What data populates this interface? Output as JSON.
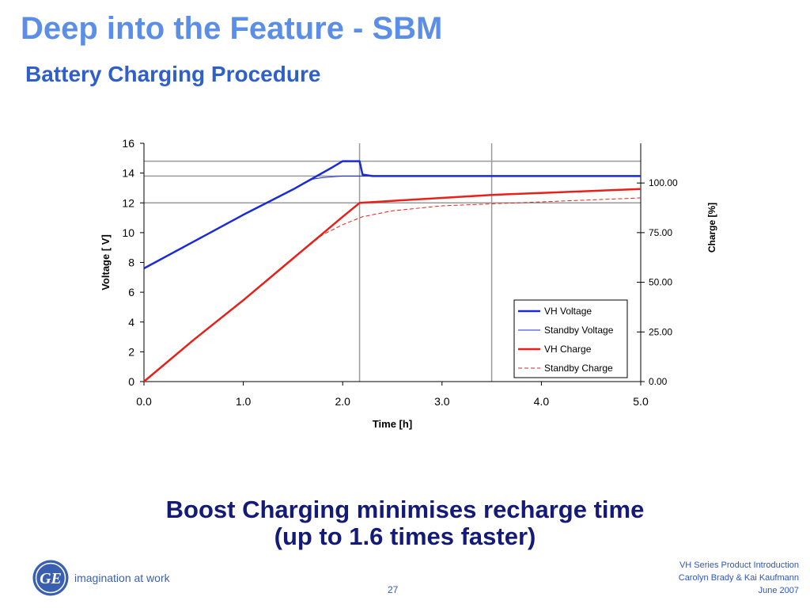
{
  "slide": {
    "title": "Deep into the Feature - SBM",
    "subtitle": "Battery Charging Procedure",
    "caption_line1": "Boost Charging minimises recharge time",
    "caption_line2": "(up to 1.6 times faster)",
    "logo_text": "GE",
    "tagline": "imagination at work",
    "page_number": "27",
    "footer": {
      "line1": "VH Series Product Introduction",
      "line2": "Carolyn Brady & Kai Kaufmann",
      "line3": "June 2007"
    },
    "colors": {
      "title": "#5b8ee6",
      "subtitle": "#2f5fc9",
      "caption": "#141a78",
      "ge_blue": "#3b5fb0"
    }
  },
  "chart_data": {
    "type": "line",
    "xlabel": "Time [h]",
    "ylabel": "Voltage  [ V]",
    "y2label": "Charge [%]",
    "xlim": [
      0,
      5
    ],
    "ylim": [
      0,
      16
    ],
    "y2lim": [
      0,
      120
    ],
    "xticks": [
      "0.0",
      "1.0",
      "2.0",
      "3.0",
      "4.0",
      "5.0"
    ],
    "yticks": [
      "0",
      "2",
      "4",
      "6",
      "8",
      "10",
      "12",
      "14",
      "16"
    ],
    "y2ticks": [
      "0.00",
      "25.00",
      "50.00",
      "75.00",
      "100.00"
    ],
    "hlines": [
      14.8,
      13.8,
      12.0
    ],
    "vlines": [
      2.17,
      3.5
    ],
    "legend_position": "lower-right",
    "series": [
      {
        "name": "VH Voltage",
        "axis": "left",
        "color": "#1a2bd8",
        "width": 2.5,
        "dash": "",
        "x": [
          0,
          0.5,
          1.0,
          1.5,
          1.9,
          2.0,
          2.17,
          2.2,
          2.3,
          2.5,
          3.0,
          4.0,
          5.0
        ],
        "y": [
          7.6,
          9.4,
          11.2,
          12.9,
          14.4,
          14.8,
          14.8,
          13.9,
          13.8,
          13.8,
          13.8,
          13.8,
          13.8
        ]
      },
      {
        "name": "Standby Voltage",
        "axis": "left",
        "color": "#1a2bd8",
        "width": 1,
        "dash": "",
        "x": [
          0,
          0.5,
          1.0,
          1.5,
          1.7,
          1.8,
          2.0,
          2.2,
          3.0,
          4.0,
          5.0
        ],
        "y": [
          7.6,
          9.4,
          11.2,
          12.9,
          13.6,
          13.7,
          13.8,
          13.8,
          13.8,
          13.8,
          13.8
        ]
      },
      {
        "name": "VH Charge",
        "axis": "right",
        "color": "#e8201a",
        "width": 2.5,
        "dash": "",
        "x": [
          0,
          0.5,
          1.0,
          1.5,
          2.0,
          2.17,
          2.5,
          3.0,
          3.5,
          4.0,
          4.5,
          5.0
        ],
        "y": [
          0,
          21,
          41,
          62,
          83,
          90,
          91,
          92.5,
          94,
          95,
          96,
          97
        ]
      },
      {
        "name": "Standby Charge",
        "axis": "right",
        "color": "#e8201a",
        "width": 1,
        "dash": "5,3",
        "x": [
          0,
          0.5,
          1.0,
          1.5,
          1.8,
          2.0,
          2.2,
          2.5,
          3.0,
          3.5,
          4.0,
          4.5,
          5.0
        ],
        "y": [
          0,
          21,
          41,
          62,
          74,
          79,
          83,
          86,
          88.5,
          89.5,
          90.5,
          91.5,
          92.5
        ]
      }
    ]
  }
}
